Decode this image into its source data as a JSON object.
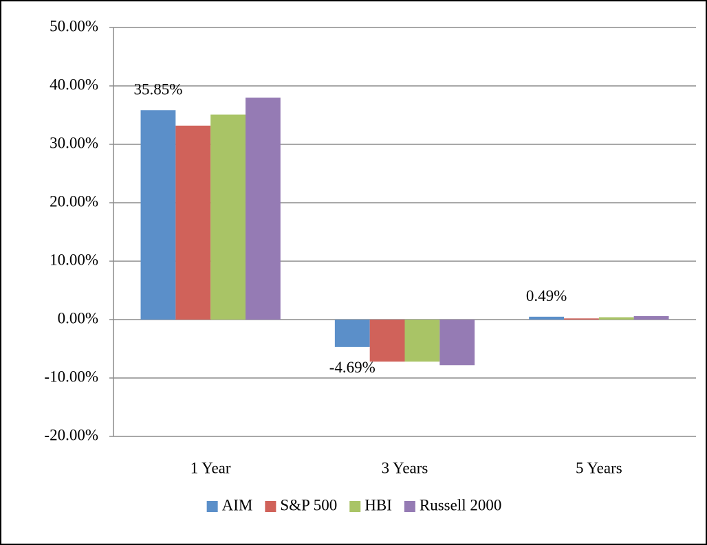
{
  "chart_data": {
    "type": "bar",
    "categories": [
      "1 Year",
      "3 Years",
      "5 Years"
    ],
    "series": [
      {
        "name": "AIM",
        "color": "#5b8fc9",
        "values": [
          35.85,
          -4.69,
          0.49
        ],
        "value_labels": [
          "35.85%",
          "-4.69%",
          "0.49%"
        ]
      },
      {
        "name": "S&P 500",
        "color": "#d0625a",
        "values": [
          33.2,
          -7.2,
          0.2
        ]
      },
      {
        "name": "HBI",
        "color": "#a9c466",
        "values": [
          35.1,
          -7.2,
          0.4
        ]
      },
      {
        "name": "Russell 2000",
        "color": "#957bb4",
        "values": [
          38.0,
          -7.8,
          0.6
        ]
      }
    ],
    "ylim": [
      -20,
      50
    ],
    "yticks": [
      {
        "value": -20,
        "label": "-20.00%"
      },
      {
        "value": -10,
        "label": "-10.00%"
      },
      {
        "value": 0,
        "label": "0.00%"
      },
      {
        "value": 10,
        "label": "10.00%"
      },
      {
        "value": 20,
        "label": "20.00%"
      },
      {
        "value": 30,
        "label": "30.00%"
      },
      {
        "value": 40,
        "label": "40.00%"
      },
      {
        "value": 50,
        "label": "50.00%"
      }
    ],
    "grid": true,
    "legend": "bottom"
  }
}
